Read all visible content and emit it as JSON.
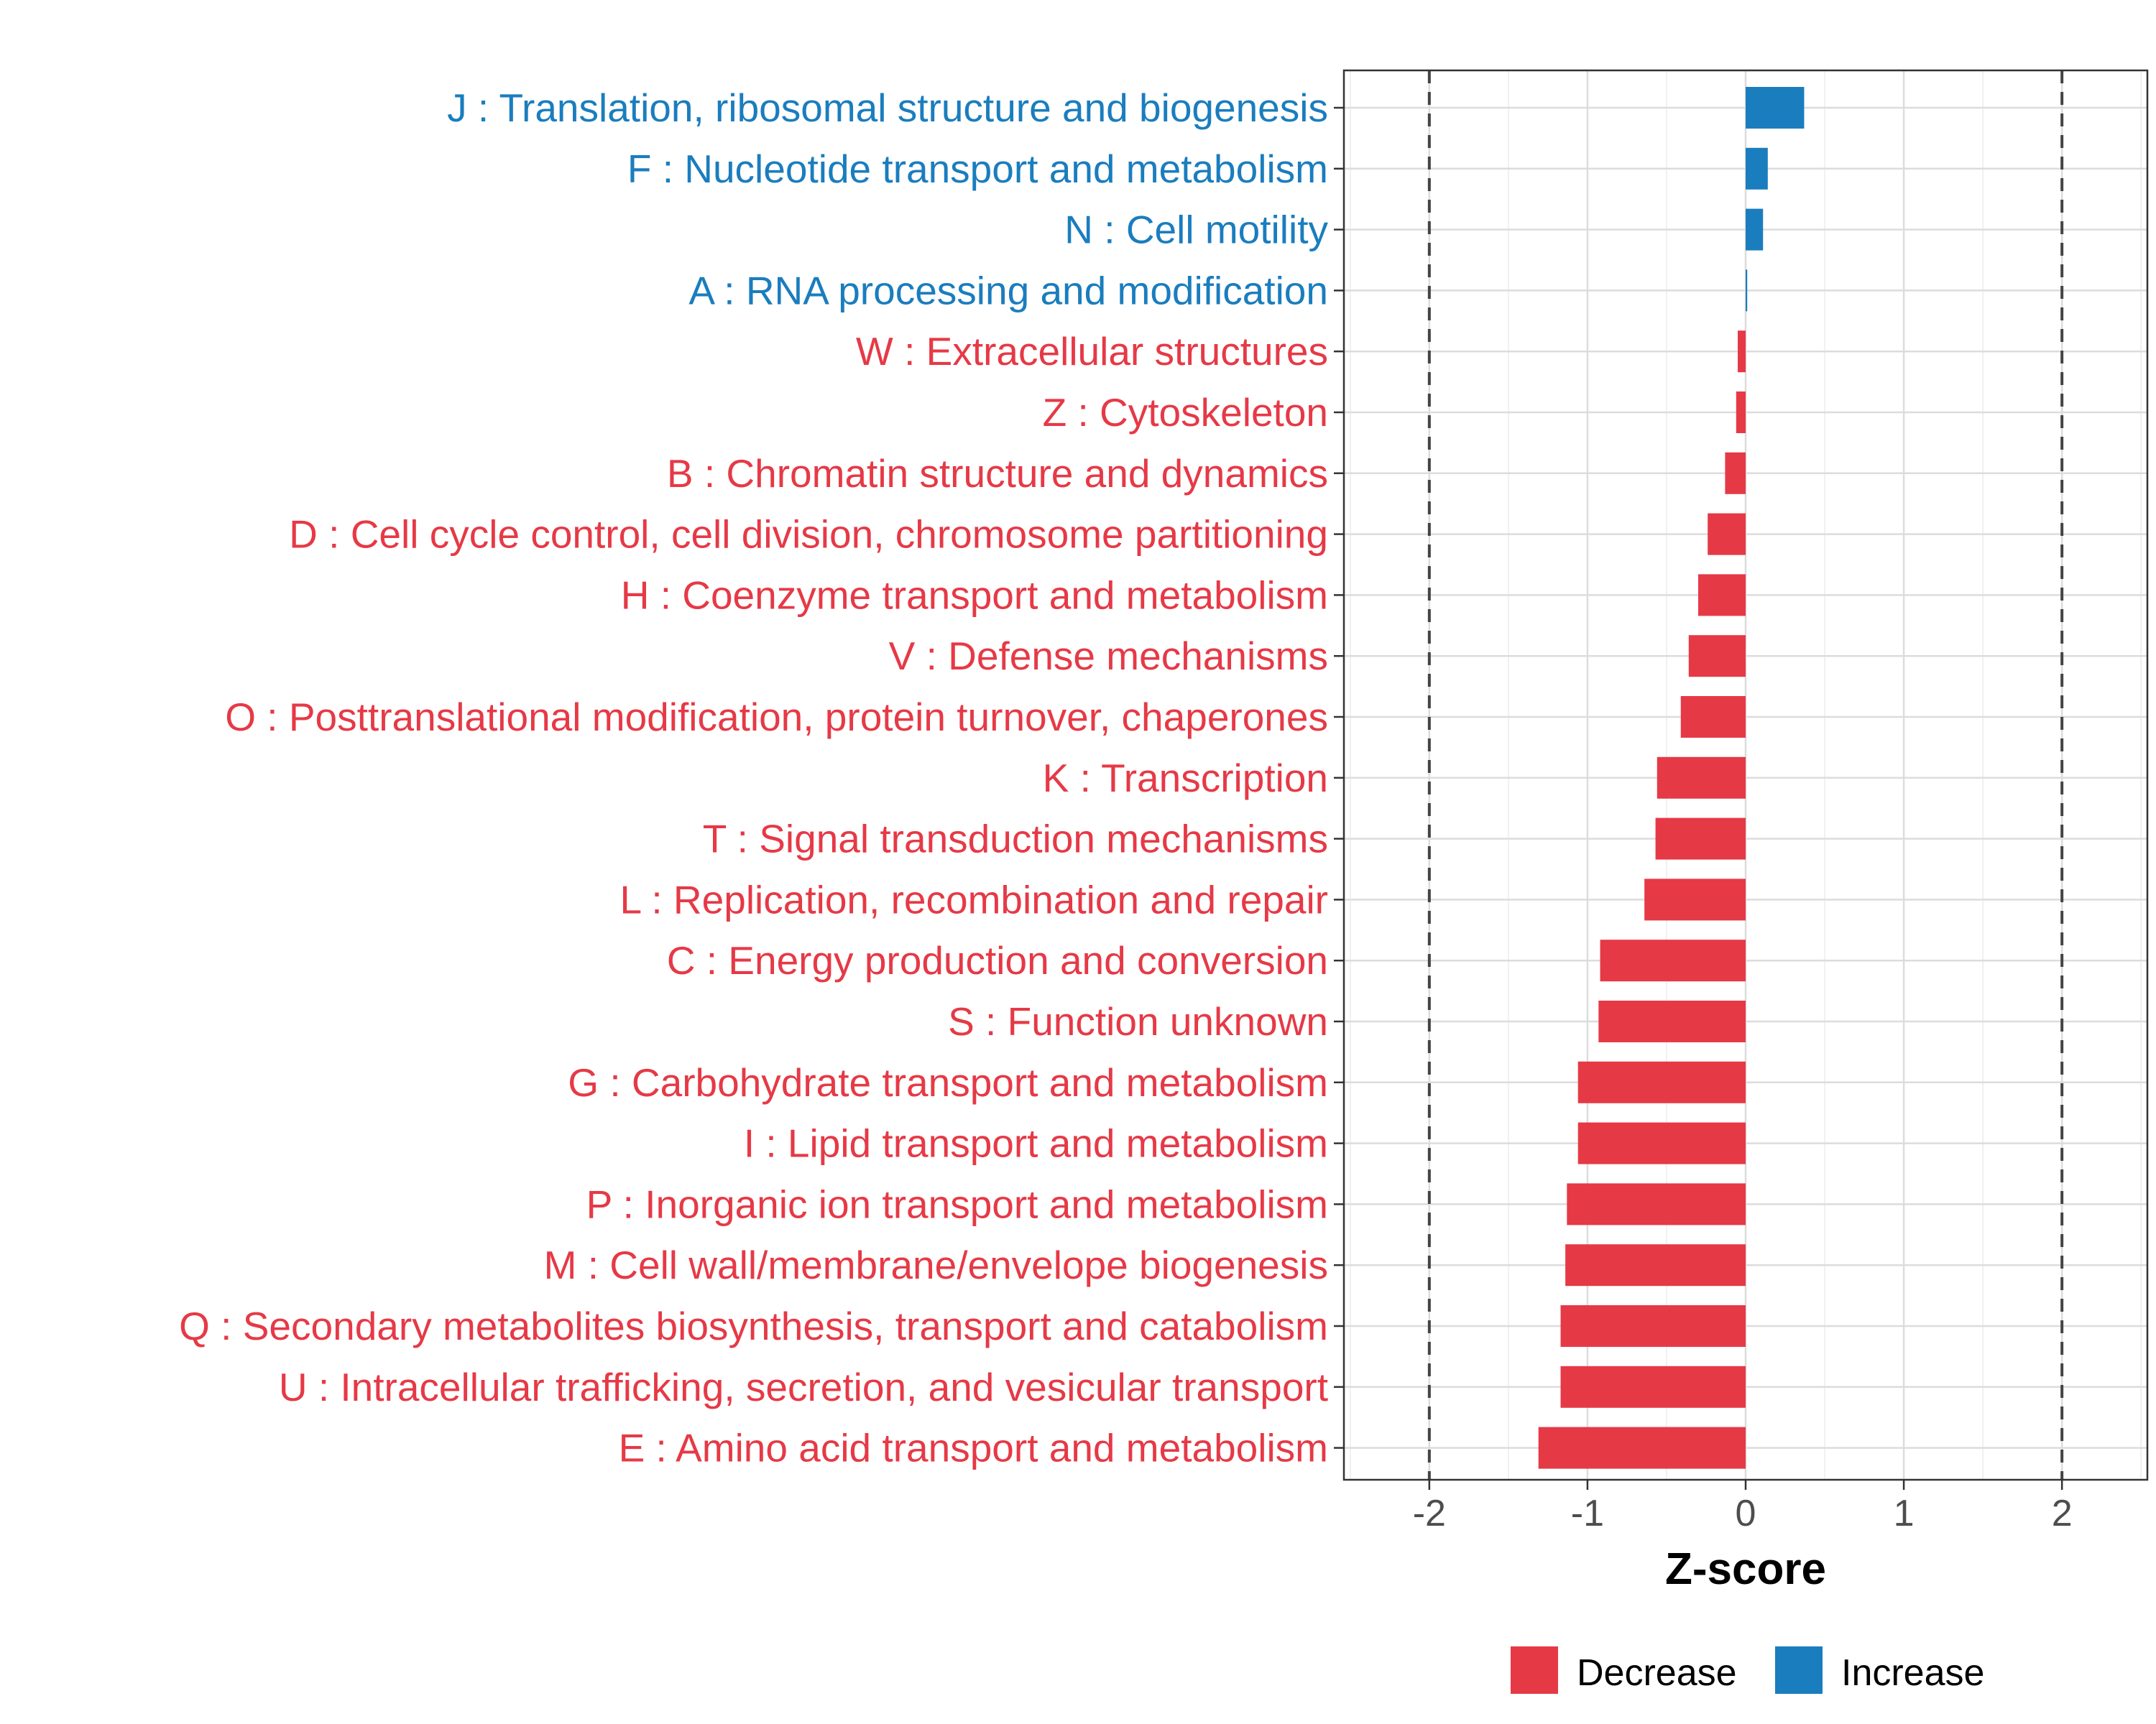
{
  "chart_data": {
    "type": "bar",
    "orientation": "horizontal",
    "xlabel": "Z-score",
    "ylabel": "",
    "xlim": [
      -2.54,
      2.54
    ],
    "xticks": [
      "-2",
      "-1",
      "0",
      "1",
      "2"
    ],
    "reference_lines": [
      -2,
      2
    ],
    "grid": true,
    "colors": {
      "Decrease": "#E63946",
      "Increase": "#1A7DBE"
    },
    "legend": {
      "position": "bottom",
      "entries": [
        "Decrease",
        "Increase"
      ]
    },
    "categories": [
      "J : Translation, ribosomal structure and biogenesis",
      "F : Nucleotide transport and metabolism",
      "N : Cell motility",
      "A : RNA processing and modification",
      "W : Extracellular structures",
      "Z : Cytoskeleton",
      "B : Chromatin structure and dynamics",
      "D : Cell cycle control, cell division, chromosome partitioning",
      "H : Coenzyme transport and metabolism",
      "V : Defense mechanisms",
      "O : Posttranslational modification, protein turnover, chaperones",
      "K : Transcription",
      "T : Signal transduction mechanisms",
      "L : Replication, recombination and repair",
      "C : Energy production and conversion",
      "S : Function unknown",
      "G : Carbohydrate transport and metabolism",
      "I : Lipid transport and metabolism",
      "P : Inorganic ion transport and metabolism",
      "M : Cell wall/membrane/envelope biogenesis",
      "Q : Secondary metabolites biosynthesis, transport and catabolism",
      "U : Intracellular trafficking, secretion, and vesicular transport",
      "E : Amino acid transport and metabolism"
    ],
    "values": [
      0.37,
      0.14,
      0.11,
      0.01,
      -0.05,
      -0.06,
      -0.13,
      -0.24,
      -0.3,
      -0.36,
      -0.41,
      -0.56,
      -0.57,
      -0.64,
      -0.92,
      -0.93,
      -1.06,
      -1.06,
      -1.13,
      -1.14,
      -1.17,
      -1.17,
      -1.31
    ],
    "groups": [
      "Increase",
      "Increase",
      "Increase",
      "Increase",
      "Decrease",
      "Decrease",
      "Decrease",
      "Decrease",
      "Decrease",
      "Decrease",
      "Decrease",
      "Decrease",
      "Decrease",
      "Decrease",
      "Decrease",
      "Decrease",
      "Decrease",
      "Decrease",
      "Decrease",
      "Decrease",
      "Decrease",
      "Decrease",
      "Decrease"
    ]
  }
}
